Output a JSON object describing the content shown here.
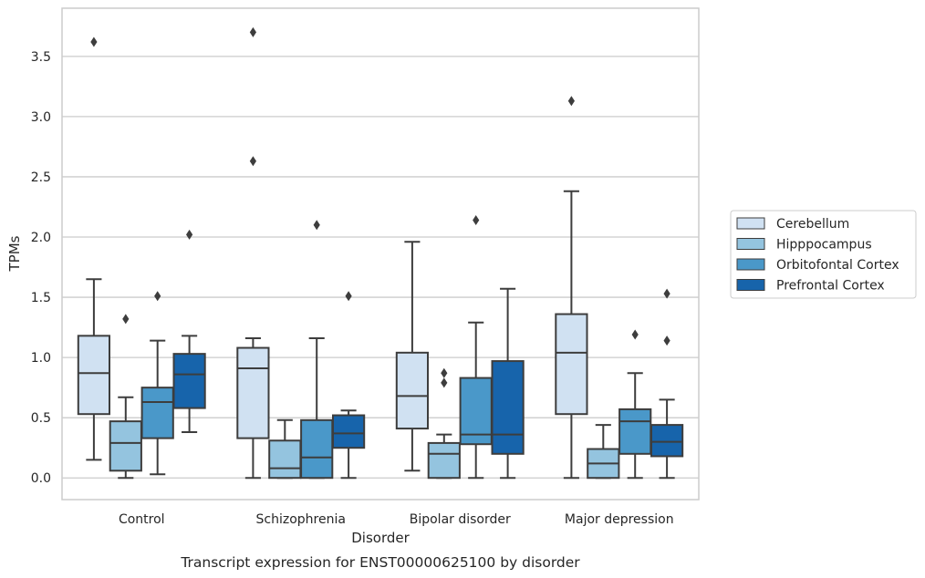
{
  "chart_data": {
    "type": "box",
    "title": "",
    "caption": "Transcript expression for ENST00000625100 by disorder",
    "xlabel": "Disorder",
    "ylabel": "TPMs",
    "ylim": [
      -0.18,
      3.9
    ],
    "yticks": [
      "0.0",
      "0.5",
      "1.0",
      "1.5",
      "2.0",
      "2.5",
      "3.0",
      "3.5"
    ],
    "grid": "horizontal",
    "legend_position": "right",
    "categories": [
      "Control",
      "Schizophrenia",
      "Bipolar disorder",
      "Major depression"
    ],
    "series": [
      {
        "name": "Cerebellum",
        "color": "#d0e1f2",
        "boxes": [
          {
            "whisker_low": 0.15,
            "q1": 0.53,
            "median": 0.87,
            "q3": 1.18,
            "whisker_high": 1.65,
            "outliers": [
              3.62
            ]
          },
          {
            "whisker_low": 0.0,
            "q1": 0.33,
            "median": 0.91,
            "q3": 1.08,
            "whisker_high": 1.16,
            "outliers": [
              2.63,
              3.7
            ]
          },
          {
            "whisker_low": 0.06,
            "q1": 0.41,
            "median": 0.68,
            "q3": 1.04,
            "whisker_high": 1.96,
            "outliers": []
          },
          {
            "whisker_low": 0.0,
            "q1": 0.53,
            "median": 1.04,
            "q3": 1.36,
            "whisker_high": 2.38,
            "outliers": [
              3.13
            ]
          }
        ]
      },
      {
        "name": "Hipppocampus",
        "color": "#94c4df",
        "boxes": [
          {
            "whisker_low": 0.0,
            "q1": 0.06,
            "median": 0.29,
            "q3": 0.47,
            "whisker_high": 0.67,
            "outliers": [
              1.32
            ]
          },
          {
            "whisker_low": 0.0,
            "q1": 0.0,
            "median": 0.08,
            "q3": 0.31,
            "whisker_high": 0.48,
            "outliers": []
          },
          {
            "whisker_low": 0.0,
            "q1": 0.0,
            "median": 0.2,
            "q3": 0.29,
            "whisker_high": 0.36,
            "outliers": [
              0.79,
              0.87
            ]
          },
          {
            "whisker_low": 0.0,
            "q1": 0.0,
            "median": 0.12,
            "q3": 0.24,
            "whisker_high": 0.44,
            "outliers": []
          }
        ]
      },
      {
        "name": "Orbitofontal Cortex",
        "color": "#4a98c9",
        "boxes": [
          {
            "whisker_low": 0.03,
            "q1": 0.33,
            "median": 0.63,
            "q3": 0.75,
            "whisker_high": 1.14,
            "outliers": [
              1.51
            ]
          },
          {
            "whisker_low": 0.0,
            "q1": 0.0,
            "median": 0.17,
            "q3": 0.48,
            "whisker_high": 1.16,
            "outliers": [
              2.1
            ]
          },
          {
            "whisker_low": 0.0,
            "q1": 0.28,
            "median": 0.36,
            "q3": 0.83,
            "whisker_high": 1.29,
            "outliers": [
              2.14
            ]
          },
          {
            "whisker_low": 0.0,
            "q1": 0.2,
            "median": 0.47,
            "q3": 0.57,
            "whisker_high": 0.87,
            "outliers": [
              1.19
            ]
          }
        ]
      },
      {
        "name": "Prefrontal Cortex",
        "color": "#1764ab",
        "boxes": [
          {
            "whisker_low": 0.38,
            "q1": 0.58,
            "median": 0.86,
            "q3": 1.03,
            "whisker_high": 1.18,
            "outliers": [
              2.02
            ]
          },
          {
            "whisker_low": 0.0,
            "q1": 0.25,
            "median": 0.37,
            "q3": 0.52,
            "whisker_high": 0.56,
            "outliers": [
              1.51
            ]
          },
          {
            "whisker_low": 0.0,
            "q1": 0.2,
            "median": 0.36,
            "q3": 0.97,
            "whisker_high": 1.57,
            "outliers": []
          },
          {
            "whisker_low": 0.0,
            "q1": 0.18,
            "median": 0.3,
            "q3": 0.44,
            "whisker_high": 0.65,
            "outliers": [
              1.14,
              1.53
            ]
          }
        ]
      }
    ]
  }
}
